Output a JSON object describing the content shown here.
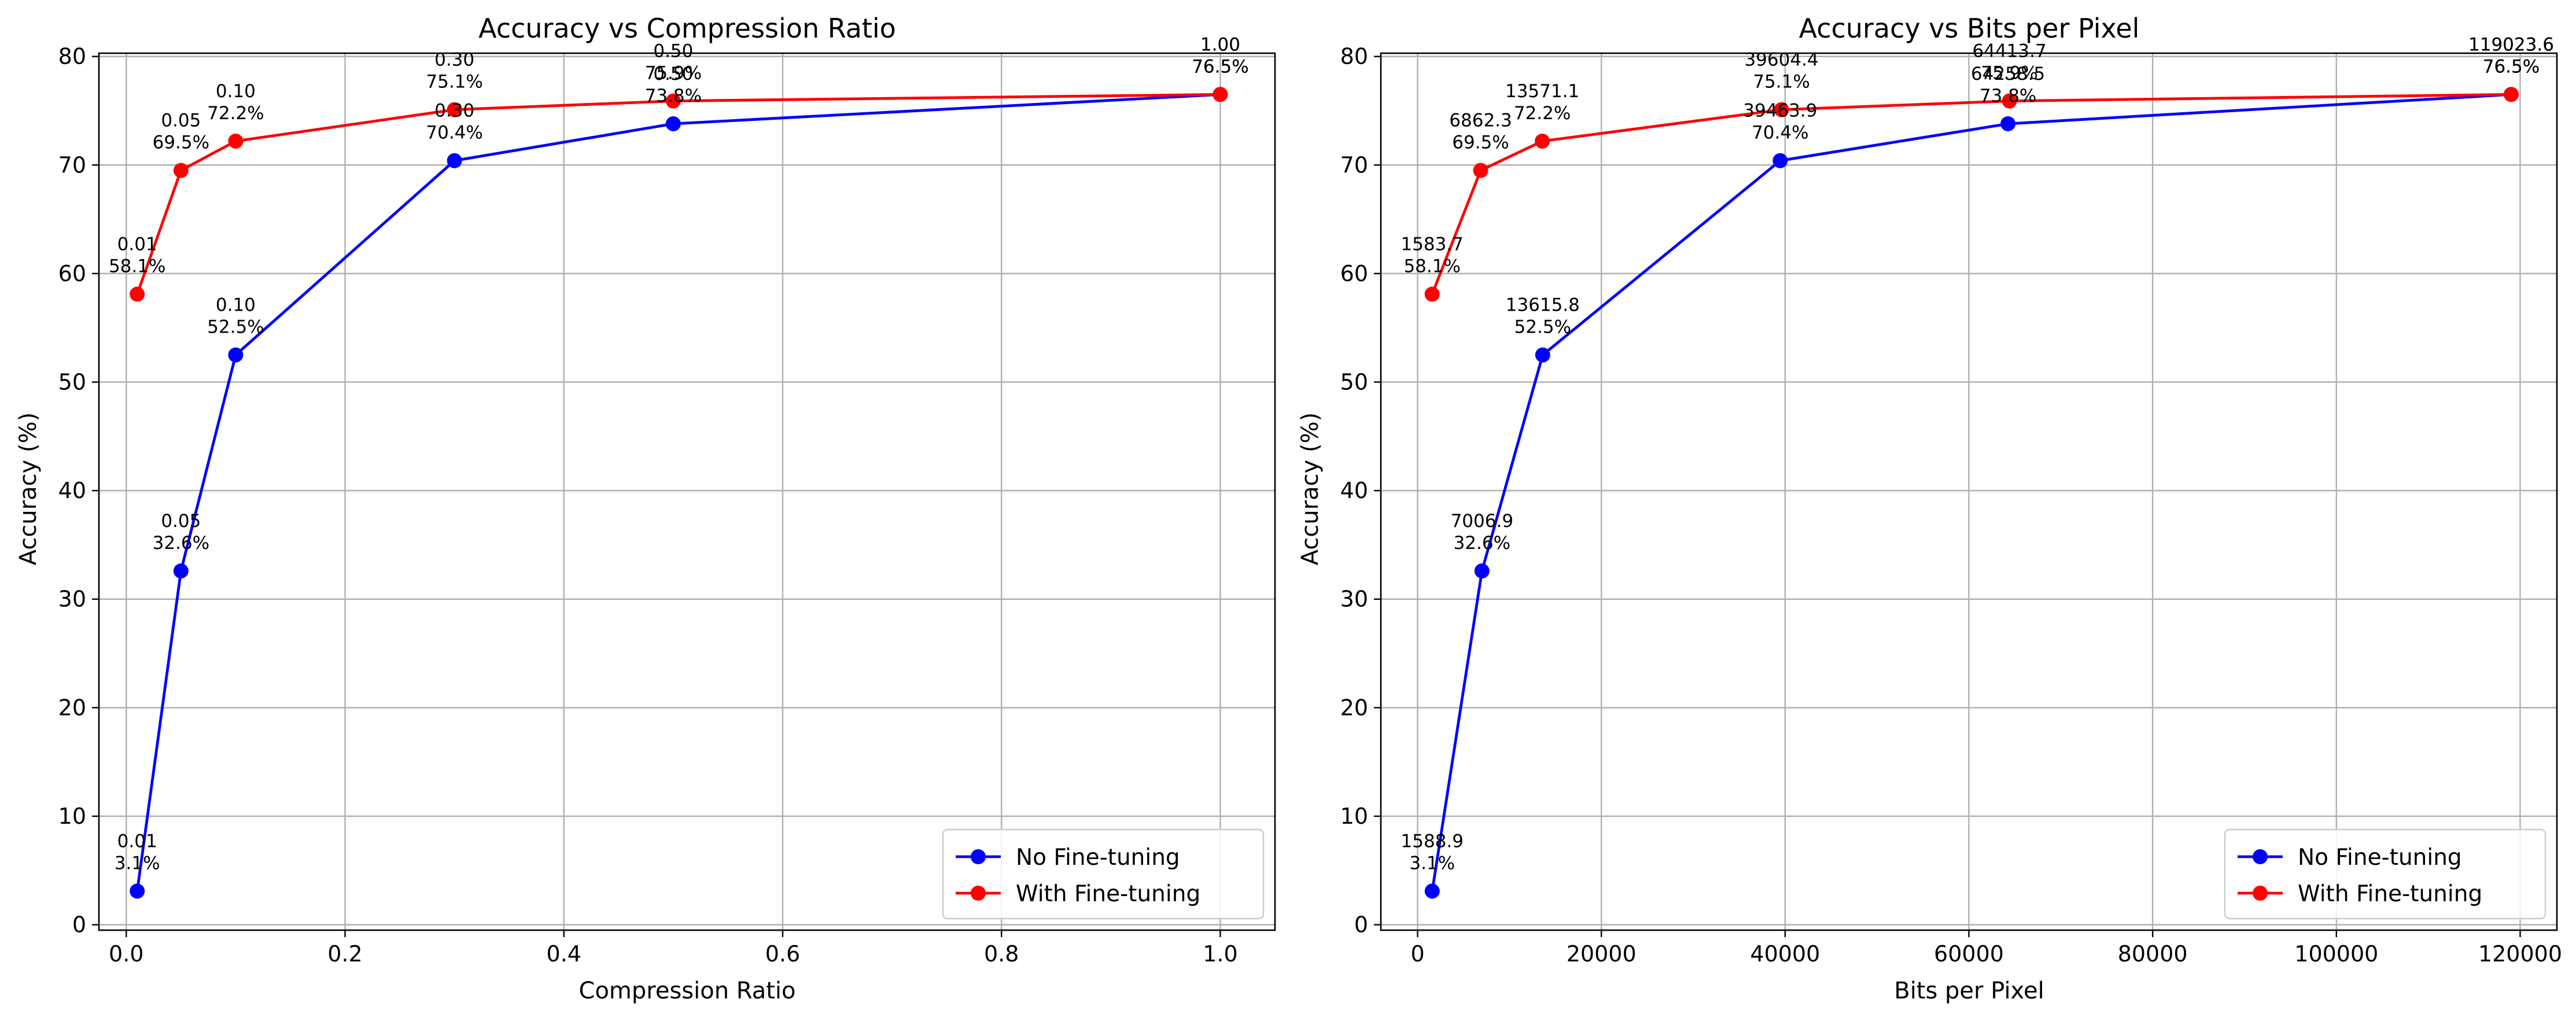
{
  "chart_data": [
    {
      "type": "line",
      "title": "Accuracy vs Compression Ratio",
      "xlabel": "Compression Ratio",
      "ylabel": "Accuracy (%)",
      "xlim": [
        -0.025,
        1.05
      ],
      "ylim": [
        -0.5,
        80.3
      ],
      "xticks": [
        0.0,
        0.2,
        0.4,
        0.6,
        0.8,
        1.0
      ],
      "xtick_labels": [
        "0.0",
        "0.2",
        "0.4",
        "0.6",
        "0.8",
        "1.0"
      ],
      "yticks": [
        0,
        10,
        20,
        30,
        40,
        50,
        60,
        70,
        80
      ],
      "ytick_labels": [
        "0",
        "10",
        "20",
        "30",
        "40",
        "50",
        "60",
        "70",
        "80"
      ],
      "grid": true,
      "legend": "lower-right",
      "series": [
        {
          "name": "No Fine-tuning",
          "color": "#0000ff",
          "x": [
            0.01,
            0.05,
            0.1,
            0.3,
            0.5,
            1.0
          ],
          "y": [
            3.1,
            32.6,
            52.5,
            70.4,
            73.8,
            76.5
          ],
          "annotations": [
            [
              "0.01",
              "3.1%"
            ],
            [
              "0.05",
              "32.6%"
            ],
            [
              "0.10",
              "52.5%"
            ],
            [
              "0.30",
              "70.4%"
            ],
            [
              "0.50",
              "73.8%"
            ],
            [
              "1.00",
              "76.5%"
            ]
          ]
        },
        {
          "name": "With Fine-tuning",
          "color": "#ff0000",
          "x": [
            0.01,
            0.05,
            0.1,
            0.3,
            0.5,
            1.0
          ],
          "y": [
            58.1,
            69.5,
            72.2,
            75.1,
            75.9,
            76.5
          ],
          "annotations": [
            [
              "0.01",
              "58.1%"
            ],
            [
              "0.05",
              "69.5%"
            ],
            [
              "0.10",
              "72.2%"
            ],
            [
              "0.30",
              "75.1%"
            ],
            [
              "0.50",
              "75.9%"
            ],
            [
              "1.00",
              "76.5%"
            ]
          ]
        }
      ]
    },
    {
      "type": "line",
      "title": "Accuracy vs Bits per Pixel",
      "xlabel": "Bits per Pixel",
      "ylabel": "Accuracy (%)",
      "xlim": [
        -4000,
        124000
      ],
      "ylim": [
        -0.5,
        80.3
      ],
      "xticks": [
        0,
        20000,
        40000,
        60000,
        80000,
        100000,
        120000
      ],
      "xtick_labels": [
        "0",
        "20000",
        "40000",
        "60000",
        "80000",
        "100000",
        "120000"
      ],
      "yticks": [
        0,
        10,
        20,
        30,
        40,
        50,
        60,
        70,
        80
      ],
      "ytick_labels": [
        "0",
        "10",
        "20",
        "30",
        "40",
        "50",
        "60",
        "70",
        "80"
      ],
      "grid": true,
      "legend": "lower-right",
      "series": [
        {
          "name": "No Fine-tuning",
          "color": "#0000ff",
          "x": [
            1588.9,
            7006.9,
            13615.8,
            39463.9,
            64258.5,
            119023.6
          ],
          "y": [
            3.1,
            32.6,
            52.5,
            70.4,
            73.8,
            76.5
          ],
          "annotations": [
            [
              "1588.9",
              "3.1%"
            ],
            [
              "7006.9",
              "32.6%"
            ],
            [
              "13615.8",
              "52.5%"
            ],
            [
              "39463.9",
              "70.4%"
            ],
            [
              "64258.5",
              "73.8%"
            ],
            [
              "119023.6",
              "76.5%"
            ]
          ]
        },
        {
          "name": "With Fine-tuning",
          "color": "#ff0000",
          "x": [
            1583.7,
            6862.3,
            13571.1,
            39604.4,
            64413.7,
            119023.6
          ],
          "y": [
            58.1,
            69.5,
            72.2,
            75.1,
            75.9,
            76.5
          ],
          "annotations": [
            [
              "1583.7",
              "58.1%"
            ],
            [
              "6862.3",
              "69.5%"
            ],
            [
              "13571.1",
              "72.2%"
            ],
            [
              "39604.4",
              "75.1%"
            ],
            [
              "64413.7",
              "75.9%"
            ],
            [
              "119023.6",
              "76.5%"
            ]
          ]
        }
      ]
    }
  ]
}
